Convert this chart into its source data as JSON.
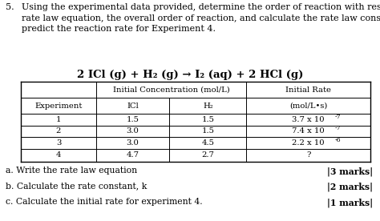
{
  "title_number": "5.",
  "title_text": "Using the experimental data provided, determine the order of reaction with respect to each reactant, the\nrate law equation, the overall order of reaction, and calculate the rate law constant, k.  Use the data to\npredict the reaction rate for Experiment 4.",
  "reaction_equation": "2 ICl (g) + H₂ (g) → I₂ (aq) + 2 HCl (g)",
  "col_header_1": "Initial Concentration (mol/L)",
  "col_header_2": "Initial Rate",
  "col_sub1": "ICl",
  "col_sub2": "H₂",
  "col_sub3": "(mol/L•s)",
  "row_label": "Experiment",
  "experiments": [
    "1",
    "2",
    "3",
    "4"
  ],
  "icl": [
    "1.5",
    "3.0",
    "3.0",
    "4.7"
  ],
  "h2": [
    "1.5",
    "1.5",
    "4.5",
    "2.7"
  ],
  "rate_base": [
    "3.7 x 10",
    "7.4 x 10",
    "2.2 x 10",
    "?"
  ],
  "rate_exp": [
    "-7",
    "-7",
    "-6",
    ""
  ],
  "questions": [
    "a. Write the rate law equation",
    "b. Calculate the rate constant, k",
    "c. Calculate the initial rate for experiment 4."
  ],
  "marks": [
    "|3 marks|",
    "|2 marks|",
    "|1 marks|"
  ],
  "bg_color": "#ffffff",
  "text_color": "#000000",
  "font_size_body": 8.0,
  "font_size_reaction": 9.5,
  "font_size_table": 7.2,
  "font_size_question": 7.8
}
